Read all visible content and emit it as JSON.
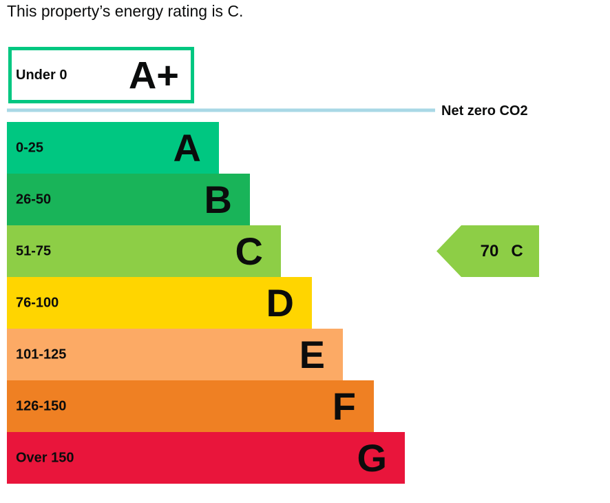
{
  "header": {
    "title": "This property’s energy rating is C."
  },
  "top_band": {
    "range": "Under 0",
    "letter": "A+",
    "color": "#00c781"
  },
  "net_zero": {
    "label": "Net zero CO2",
    "color": "#a9d8e6"
  },
  "bands": [
    {
      "range": "0-25",
      "letter": "A",
      "color": "#00c781"
    },
    {
      "range": "26-50",
      "letter": "B",
      "color": "#19b459"
    },
    {
      "range": "51-75",
      "letter": "C",
      "color": "#8dce46"
    },
    {
      "range": "76-100",
      "letter": "D",
      "color": "#ffd500"
    },
    {
      "range": "101-125",
      "letter": "E",
      "color": "#fcaa65"
    },
    {
      "range": "126-150",
      "letter": "F",
      "color": "#ef8023"
    },
    {
      "range": "Over 150",
      "letter": "G",
      "color": "#e9153b"
    }
  ],
  "current": {
    "band_index": 2,
    "score": 70,
    "letter": "C"
  }
}
